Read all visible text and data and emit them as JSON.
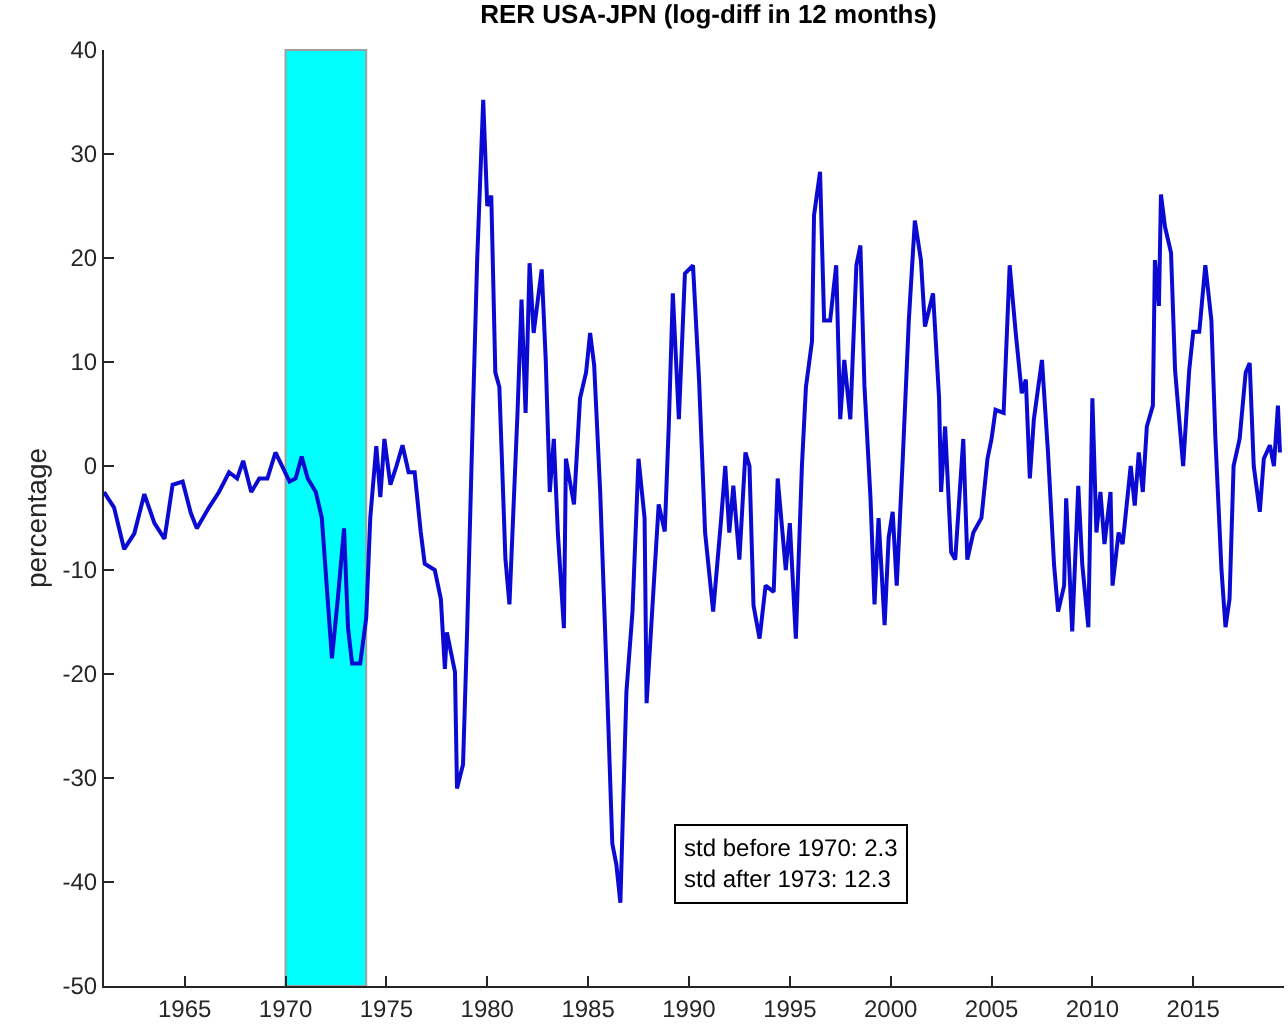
{
  "chart_data": {
    "type": "line",
    "title": "RER USA-JPN (log-diff in 12 months)",
    "ylabel": "percentage",
    "xlim": [
      1961,
      2019.5
    ],
    "xticks": [
      1965,
      1970,
      1975,
      1980,
      1985,
      1990,
      1995,
      2000,
      2005,
      2010,
      2015
    ],
    "ylim": [
      -50,
      40
    ],
    "yticks": [
      -50,
      -40,
      -30,
      -20,
      -10,
      0,
      10,
      20,
      30,
      40
    ],
    "grid": false,
    "marker": "none",
    "line_style": "solid",
    "bands": [
      {
        "axis": "x",
        "from": 1970,
        "to": 1974,
        "color": "#00ffff"
      }
    ],
    "annotations": [
      "std before 1970: 2.3\nstd after 1973: 12.3"
    ],
    "series": [
      {
        "color": "#0a0ad2",
        "x": [
          1961.0,
          1961.5,
          1962.0,
          1962.5,
          1963.0,
          1963.5,
          1964.0,
          1964.4,
          1964.9,
          1965.3,
          1965.6,
          1966.2,
          1966.7,
          1967.2,
          1967.6,
          1967.9,
          1968.3,
          1968.7,
          1969.1,
          1969.5,
          1969.8,
          1970.2,
          1970.5,
          1970.8,
          1971.1,
          1971.5,
          1971.8,
          1972.3,
          1972.6,
          1972.9,
          1973.1,
          1973.3,
          1973.7,
          1974.0,
          1974.2,
          1974.5,
          1974.7,
          1974.9,
          1975.2,
          1975.5,
          1975.8,
          1976.1,
          1976.4,
          1976.7,
          1976.9,
          1977.4,
          1977.7,
          1977.9,
          1978.0,
          1978.4,
          1978.5,
          1978.8,
          1979.0,
          1979.3,
          1979.5,
          1979.8,
          1980.0,
          1980.2,
          1980.4,
          1980.6,
          1980.9,
          1981.1,
          1981.5,
          1981.7,
          1981.9,
          1982.1,
          1982.3,
          1982.7,
          1982.9,
          1983.1,
          1983.3,
          1983.5,
          1983.8,
          1983.9,
          1984.3,
          1984.6,
          1984.9,
          1985.1,
          1985.3,
          1985.6,
          1985.9,
          1986.2,
          1986.4,
          1986.6,
          1986.9,
          1987.2,
          1987.5,
          1987.8,
          1987.9,
          1988.3,
          1988.5,
          1988.8,
          1989.0,
          1989.2,
          1989.5,
          1989.8,
          1990.2,
          1990.5,
          1990.8,
          1991.2,
          1991.6,
          1991.8,
          1992.0,
          1992.2,
          1992.5,
          1992.8,
          1993.0,
          1993.2,
          1993.5,
          1993.8,
          1994.2,
          1994.4,
          1994.8,
          1995.0,
          1995.3,
          1995.6,
          1995.8,
          1996.1,
          1996.2,
          1996.5,
          1996.7,
          1997.0,
          1997.3,
          1997.5,
          1997.7,
          1998.0,
          1998.3,
          1998.5,
          1998.7,
          1999.0,
          1999.2,
          1999.4,
          1999.7,
          1999.9,
          2000.1,
          2000.3,
          2000.6,
          2000.9,
          2001.2,
          2001.5,
          2001.7,
          2002.1,
          2002.4,
          2002.5,
          2002.7,
          2003.0,
          2003.2,
          2003.6,
          2003.8,
          2004.1,
          2004.5,
          2004.8,
          2005.0,
          2005.2,
          2005.6,
          2005.9,
          2006.2,
          2006.5,
          2006.7,
          2006.9,
          2007.1,
          2007.5,
          2007.8,
          2008.1,
          2008.3,
          2008.6,
          2008.7,
          2009.0,
          2009.3,
          2009.5,
          2009.8,
          2010.0,
          2010.2,
          2010.4,
          2010.6,
          2010.9,
          2011.0,
          2011.3,
          2011.5,
          2011.9,
          2012.1,
          2012.3,
          2012.5,
          2012.7,
          2013.0,
          2013.1,
          2013.3,
          2013.4,
          2013.6,
          2013.9,
          2014.1,
          2014.5,
          2014.8,
          2015.0,
          2015.3,
          2015.6,
          2015.9,
          2016.1,
          2016.4,
          2016.6,
          2016.8,
          2017.0,
          2017.3,
          2017.6,
          2017.8,
          2018.0,
          2018.3,
          2018.5,
          2018.8,
          2019.0,
          2019.2,
          2019.3
        ],
        "values": [
          -2.5,
          -4,
          -8,
          -6.5,
          -2.7,
          -5.5,
          -7,
          -1.8,
          -1.5,
          -4.5,
          -6,
          -4,
          -2.5,
          -0.6,
          -1.2,
          0.5,
          -2.5,
          -1.2,
          -1.2,
          1.3,
          0.1,
          -1.5,
          -1.2,
          0.9,
          -1.2,
          -2.5,
          -5,
          -18.5,
          -12.6,
          -6,
          -15.6,
          -19,
          -19,
          -14.6,
          -5,
          1.9,
          -3,
          2.6,
          -1.8,
          0,
          2,
          -0.6,
          -0.6,
          -6.3,
          -9.4,
          -10,
          -12.8,
          -19.5,
          -16,
          -19.8,
          -31,
          -28.7,
          -16,
          5.8,
          19.8,
          35.2,
          25,
          26,
          9,
          7.6,
          -8.9,
          -13.3,
          5.1,
          16,
          5.1,
          19.5,
          12.8,
          18.9,
          10.2,
          -2.5,
          2.6,
          -6.4,
          -15.6,
          0.7,
          -3.7,
          6.5,
          9,
          12.8,
          9.7,
          -2.5,
          -19,
          -36.3,
          -38.3,
          -42,
          -21.7,
          -14,
          0.7,
          -5,
          -22.8,
          -10,
          -3.7,
          -6.3,
          3.9,
          16.6,
          4.5,
          18.5,
          19.3,
          8.3,
          -6.4,
          -14,
          -5,
          0,
          -6.4,
          -1.9,
          -9,
          1.3,
          0,
          -13.4,
          -16.6,
          -11.5,
          -12.1,
          -1.2,
          -10,
          -5.5,
          -16.6,
          0,
          7.6,
          12,
          24.1,
          28.3,
          14,
          14,
          19.3,
          4.5,
          10.2,
          4.5,
          19.3,
          21.2,
          7.7,
          -3.1,
          -13.3,
          -5,
          -15.3,
          -6.9,
          -4.4,
          -11.5,
          0.7,
          14,
          23.6,
          19.8,
          13.4,
          16.6,
          6.5,
          -2.5,
          3.8,
          -8.3,
          -9,
          2.6,
          -9,
          -6.4,
          -5,
          0.7,
          2.6,
          5.4,
          5.1,
          19.3,
          12.8,
          7,
          8.3,
          -1.2,
          4.5,
          10.2,
          1.3,
          -9.5,
          -14,
          -11.5,
          -3.1,
          -15.9,
          -1.9,
          -9.5,
          -15.5,
          6.5,
          -6.4,
          -2.5,
          -7.5,
          -2.5,
          -11.5,
          -6.4,
          -7.5,
          0,
          -3.8,
          1.3,
          -2.5,
          3.8,
          5.8,
          19.8,
          15.4,
          26.1,
          23,
          20.5,
          9.2,
          0,
          9.2,
          12.9,
          12.9,
          19.3,
          14,
          2.6,
          -10,
          -15.5,
          -12.8,
          0,
          2.6,
          9,
          9.9,
          0,
          -4.4,
          0.7,
          2,
          0,
          5.8,
          1.3
        ]
      }
    ]
  }
}
